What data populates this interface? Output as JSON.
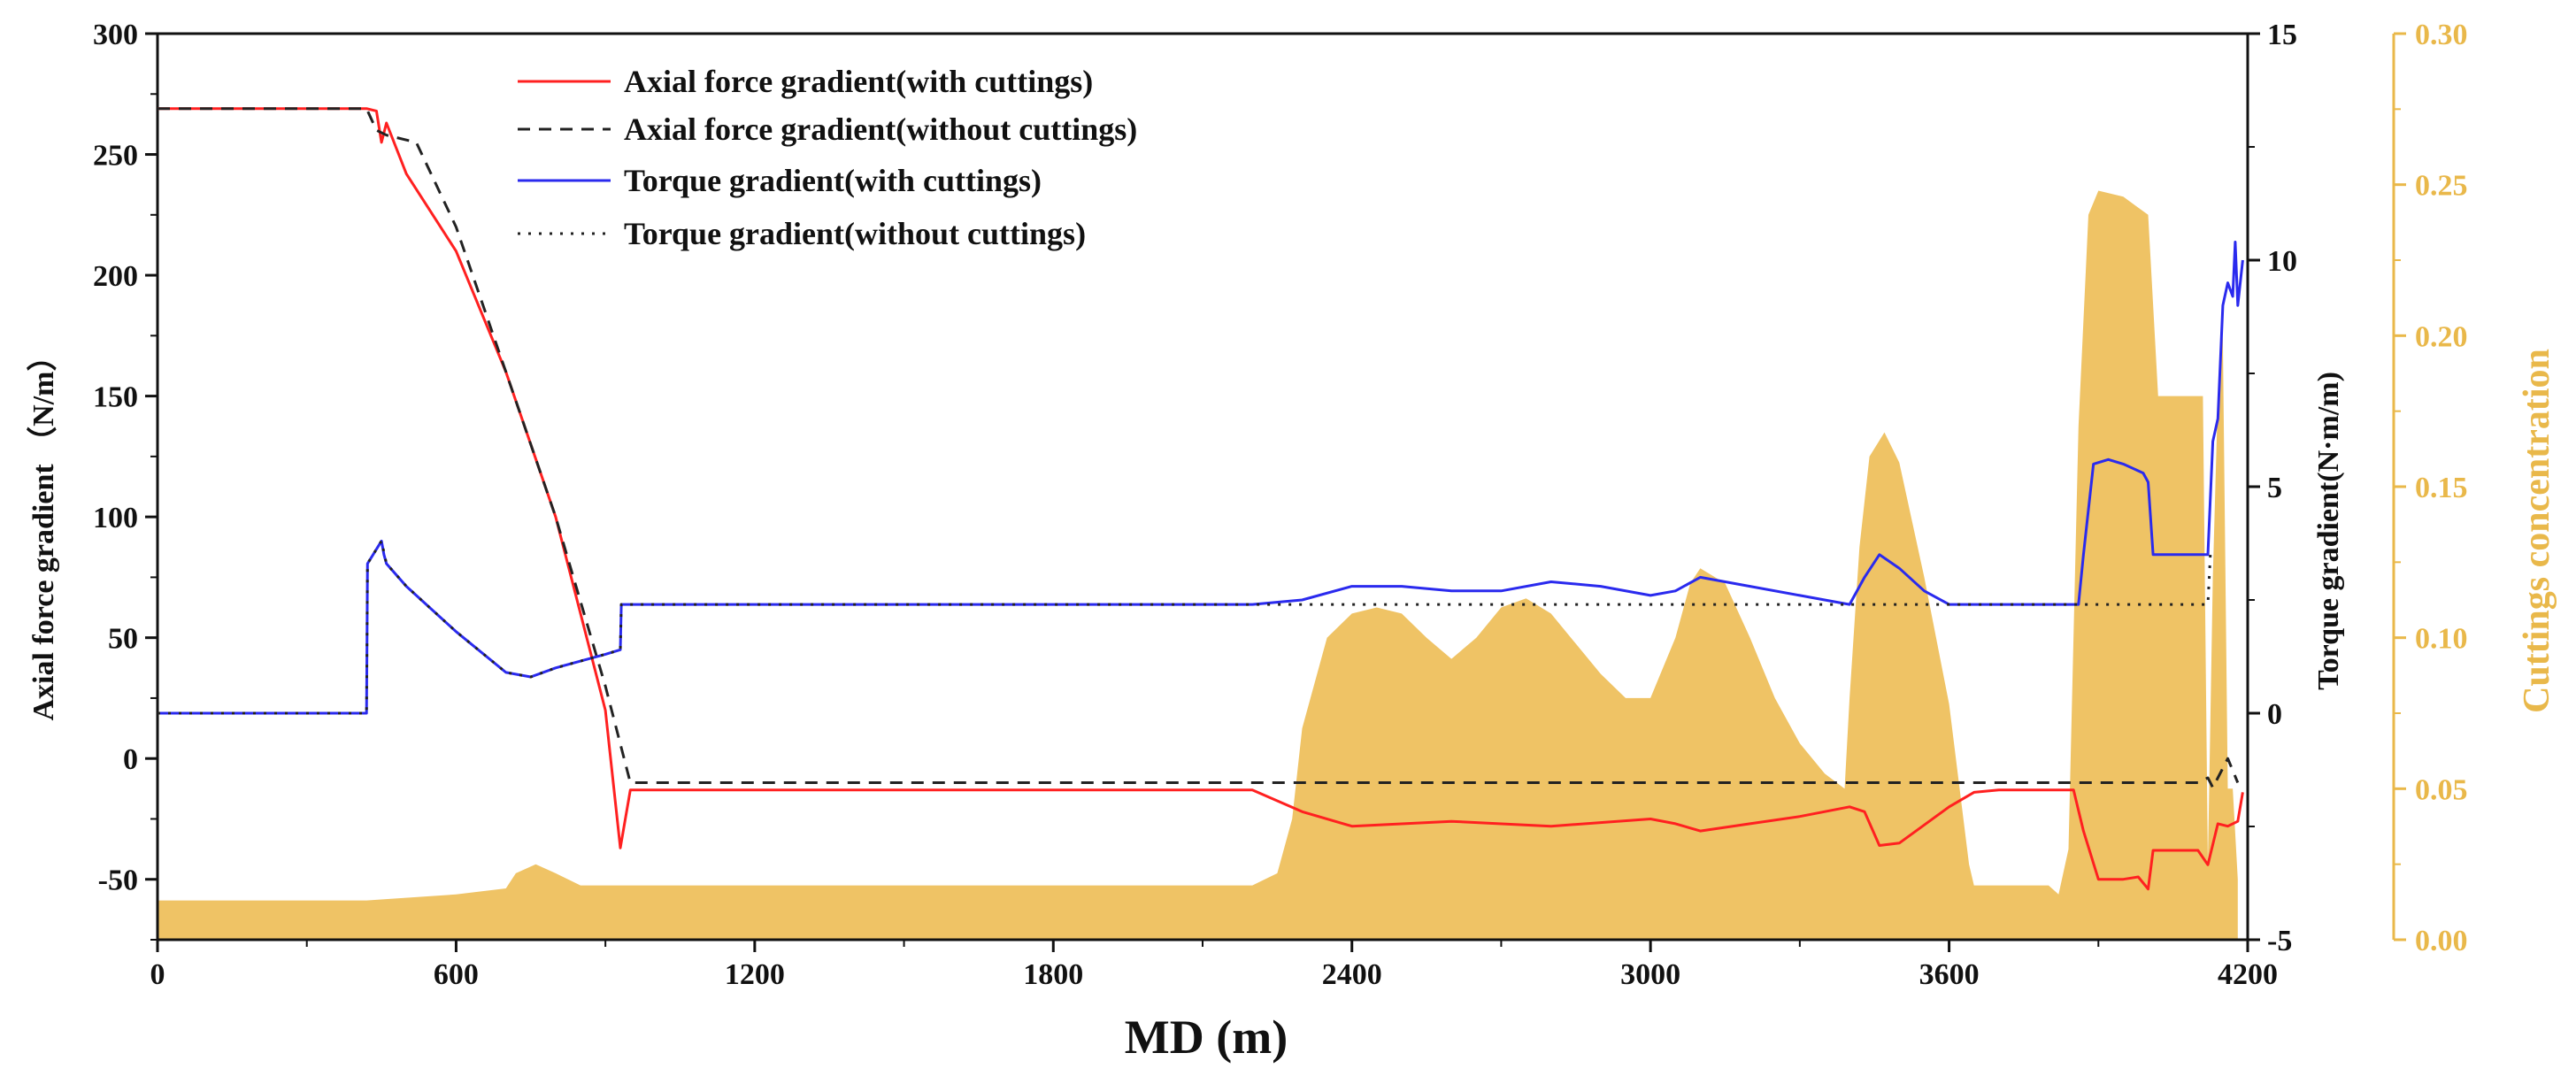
{
  "chart_data": {
    "type": "line",
    "xlabel": "MD (m)",
    "ylabel_left": "Axial force gradient （N/m）",
    "ylabel_right": "Torque gradient(N·m/m)",
    "ylabel_far_right": "Cuttings concentration",
    "xlim": [
      0,
      4200
    ],
    "ylim_left": [
      -75,
      300
    ],
    "ylim_right": [
      -5,
      15
    ],
    "ylim_far_right": [
      0,
      0.3
    ],
    "x_ticks": [
      "0",
      "600",
      "1200",
      "1800",
      "2400",
      "3000",
      "3600",
      "4200"
    ],
    "y_left_ticks": [
      "-50",
      "0",
      "50",
      "100",
      "150",
      "200",
      "250",
      "300"
    ],
    "y_right_ticks": [
      "-5",
      "0",
      "5",
      "10",
      "15"
    ],
    "y_far_right_ticks": [
      "0.00",
      "0.05",
      "0.10",
      "0.15",
      "0.20",
      "0.25",
      "0.30"
    ],
    "legend": {
      "position": "top-center",
      "entries": [
        "Axial force gradient(with cuttings)",
        "Axial force gradient(without cuttings)",
        "Torque gradient(with cuttings)",
        "Torque gradient(without cuttings)"
      ]
    },
    "colors": {
      "axial_with": "#ff2020",
      "axial_without": "#222222",
      "torque_with": "#2a2aee",
      "torque_without": "#222222",
      "cuttings_fill": "#efc365",
      "cuttings_axis": "#e9b84a"
    },
    "series": [
      {
        "name": "Axial force gradient(with cuttings)",
        "axis": "left",
        "style": "solid",
        "x": [
          0,
          420,
          440,
          450,
          460,
          500,
          600,
          700,
          800,
          900,
          930,
          950,
          1200,
          1800,
          2200,
          2300,
          2400,
          2600,
          2800,
          3000,
          3050,
          3100,
          3200,
          3300,
          3400,
          3430,
          3460,
          3500,
          3600,
          3650,
          3700,
          3800,
          3850,
          3870,
          3900,
          3950,
          3980,
          4000,
          4010,
          4100,
          4120,
          4140,
          4160,
          4180,
          4190
        ],
        "values": [
          269,
          269,
          268,
          255,
          263,
          242,
          210,
          160,
          100,
          20,
          -37,
          -13,
          -13,
          -13,
          -13,
          -22,
          -28,
          -26,
          -28,
          -25,
          -27,
          -30,
          -27,
          -24,
          -20,
          -22,
          -36,
          -35,
          -20,
          -14,
          -13,
          -13,
          -13,
          -30,
          -50,
          -50,
          -49,
          -54,
          -38,
          -38,
          -44,
          -27,
          -28,
          -26,
          -14
        ]
      },
      {
        "name": "Axial force gradient(without cuttings)",
        "axis": "left",
        "style": "dashed",
        "x": [
          0,
          420,
          440,
          460,
          520,
          600,
          700,
          800,
          900,
          950,
          1200,
          1800,
          2400,
          3000,
          3600,
          3850,
          4100,
          4120,
          4130,
          4140,
          4160,
          4180
        ],
        "values": [
          269,
          269,
          260,
          258,
          255,
          220,
          160,
          100,
          30,
          -10,
          -10,
          -10,
          -10,
          -10,
          -10,
          -10,
          -10,
          -8,
          -12,
          -8,
          0,
          -10
        ]
      },
      {
        "name": "Torque gradient(with cuttings)",
        "axis": "right",
        "style": "solid",
        "x": [
          0,
          420,
          422,
          450,
          455,
          460,
          500,
          600,
          700,
          750,
          800,
          900,
          930,
          932,
          1200,
          1800,
          2200,
          2300,
          2400,
          2500,
          2600,
          2700,
          2800,
          2900,
          3000,
          3050,
          3100,
          3200,
          3300,
          3400,
          3430,
          3460,
          3500,
          3550,
          3600,
          3700,
          3860,
          3870,
          3890,
          3920,
          3950,
          3990,
          4000,
          4010,
          4110,
          4120,
          4130,
          4140,
          4150,
          4160,
          4170,
          4175,
          4180,
          4185,
          4190
        ],
        "values": [
          0,
          0,
          3.3,
          3.8,
          3.5,
          3.3,
          2.8,
          1.8,
          0.9,
          0.8,
          1.0,
          1.3,
          1.4,
          2.4,
          2.4,
          2.4,
          2.4,
          2.5,
          2.8,
          2.8,
          2.7,
          2.7,
          2.9,
          2.8,
          2.6,
          2.7,
          3.0,
          2.8,
          2.6,
          2.4,
          3.0,
          3.5,
          3.2,
          2.7,
          2.4,
          2.4,
          2.4,
          3.5,
          5.5,
          5.6,
          5.5,
          5.3,
          5.1,
          3.5,
          3.5,
          3.5,
          6.0,
          6.5,
          9.0,
          9.5,
          9.2,
          10.4,
          9.0,
          9.5,
          10.0
        ]
      },
      {
        "name": "Torque gradient(without cuttings)",
        "axis": "right",
        "style": "dotted",
        "x": [
          0,
          420,
          422,
          450,
          460,
          500,
          600,
          700,
          750,
          800,
          900,
          930,
          932,
          1200,
          1800,
          2400,
          3000,
          3600,
          4120,
          4125,
          4130
        ],
        "values": [
          0,
          0,
          3.3,
          3.8,
          3.3,
          2.8,
          1.8,
          0.9,
          0.8,
          1.0,
          1.3,
          1.4,
          2.4,
          2.4,
          2.4,
          2.4,
          2.4,
          2.4,
          2.4,
          3.5,
          3.5
        ]
      },
      {
        "name": "Cuttings concentration",
        "axis": "far_right",
        "style": "area",
        "x": [
          0,
          420,
          600,
          700,
          720,
          760,
          800,
          850,
          900,
          950,
          1200,
          1800,
          2200,
          2250,
          2280,
          2300,
          2350,
          2400,
          2450,
          2500,
          2550,
          2600,
          2650,
          2700,
          2750,
          2800,
          2850,
          2900,
          2950,
          3000,
          3050,
          3080,
          3100,
          3150,
          3200,
          3250,
          3300,
          3350,
          3390,
          3400,
          3420,
          3440,
          3470,
          3500,
          3550,
          3600,
          3640,
          3650,
          3700,
          3800,
          3820,
          3840,
          3860,
          3880,
          3900,
          3950,
          4000,
          4020,
          4100,
          4110,
          4120,
          4130,
          4140,
          4150,
          4160,
          4170,
          4180
        ],
        "values": [
          0.013,
          0.013,
          0.015,
          0.017,
          0.022,
          0.025,
          0.022,
          0.018,
          0.018,
          0.018,
          0.018,
          0.018,
          0.018,
          0.022,
          0.04,
          0.07,
          0.1,
          0.108,
          0.11,
          0.108,
          0.1,
          0.093,
          0.1,
          0.11,
          0.113,
          0.108,
          0.098,
          0.088,
          0.08,
          0.08,
          0.1,
          0.118,
          0.123,
          0.118,
          0.1,
          0.08,
          0.065,
          0.055,
          0.05,
          0.08,
          0.13,
          0.16,
          0.168,
          0.158,
          0.12,
          0.078,
          0.025,
          0.018,
          0.018,
          0.018,
          0.015,
          0.03,
          0.17,
          0.24,
          0.248,
          0.246,
          0.24,
          0.18,
          0.18,
          0.18,
          0.025,
          0.12,
          0.18,
          0.2,
          0.05,
          0.05,
          0.02
        ]
      }
    ]
  }
}
